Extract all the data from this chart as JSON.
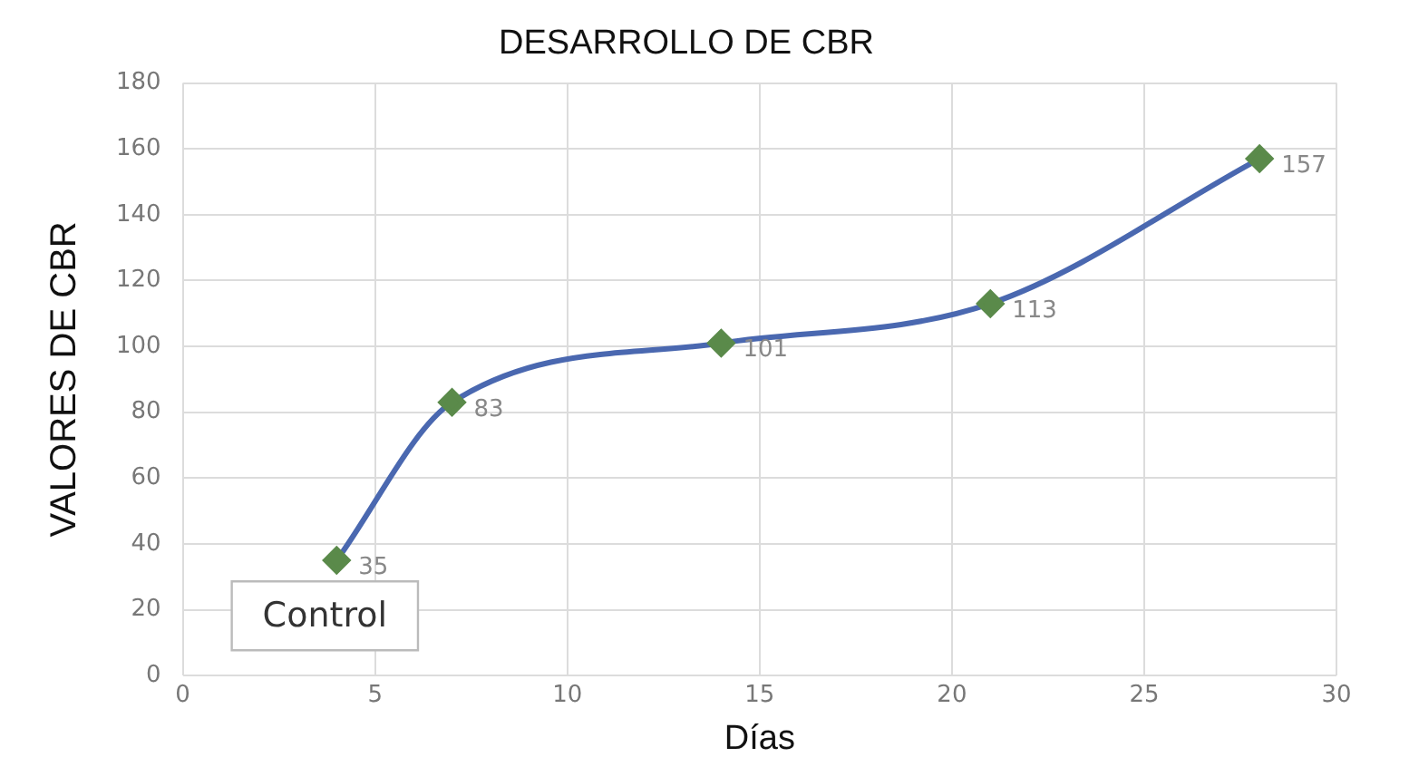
{
  "chart_data": {
    "type": "line",
    "title": "DESARROLLO DE CBR",
    "xlabel": "Días",
    "ylabel": "VALORES DE CBR",
    "x": [
      4,
      7,
      14,
      21,
      28
    ],
    "series": [
      {
        "color": "#4a68b0",
        "colors": [
          "#5a8a4a",
          "#5a8a4a",
          "#5a8a4a",
          "#5a8a4a",
          "#5a8a4a"
        ],
        "values": [
          35,
          83,
          101,
          113,
          157
        ]
      }
    ],
    "xlim": [
      0,
      30
    ],
    "xticks": [
      0,
      5,
      10,
      15,
      20,
      25,
      30
    ],
    "ylim": [
      0,
      180
    ],
    "yticks": [
      0,
      20,
      40,
      60,
      80,
      100,
      120,
      140,
      160,
      180
    ],
    "grid": true,
    "marker": "diamond",
    "line_style": "solid",
    "data_labels": true,
    "legend": false,
    "annotations": [
      "Control"
    ]
  }
}
